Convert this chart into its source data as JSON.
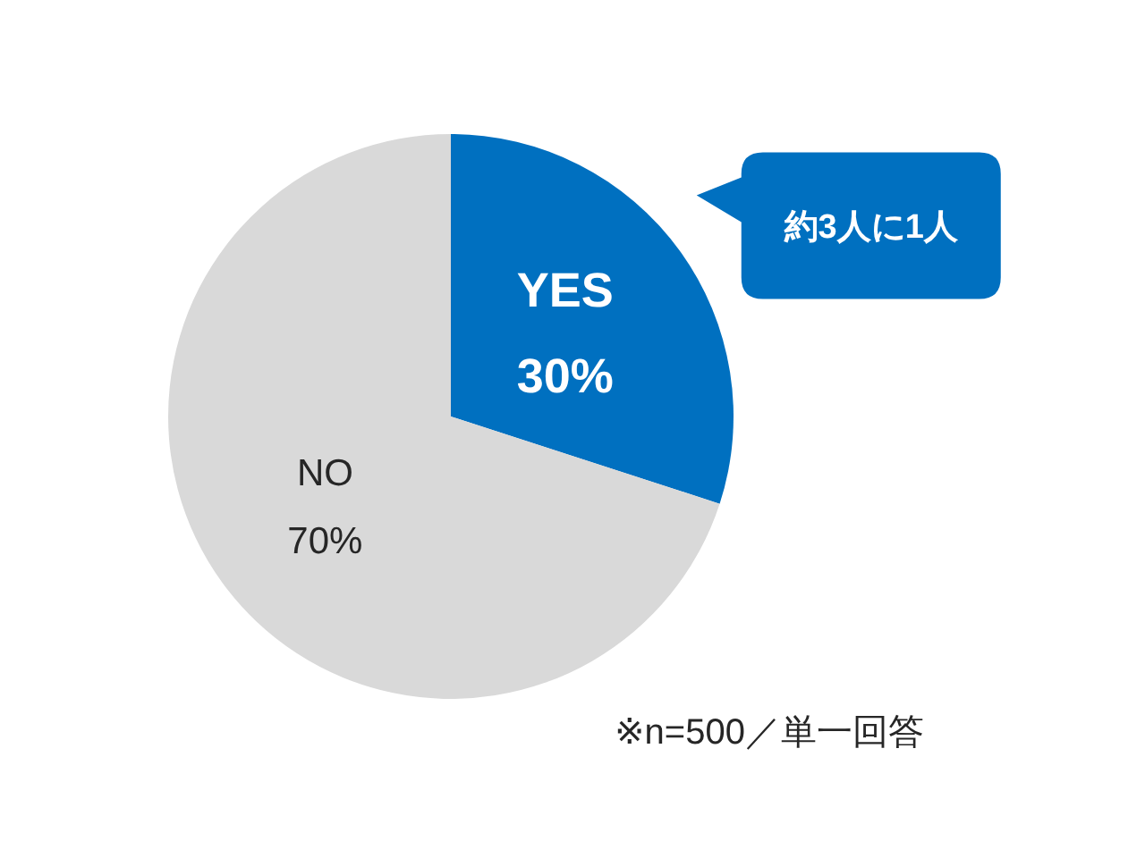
{
  "chart_data": {
    "type": "pie",
    "categories": [
      "YES",
      "NO"
    ],
    "values": [
      30,
      70
    ],
    "colors": [
      "#0070c0",
      "#d9d9d9"
    ],
    "value_labels": [
      "30%",
      "70%"
    ],
    "annotations": [
      {
        "text": "約3人に1人",
        "x": "YES"
      },
      "※n=500／単一回答"
    ]
  }
}
